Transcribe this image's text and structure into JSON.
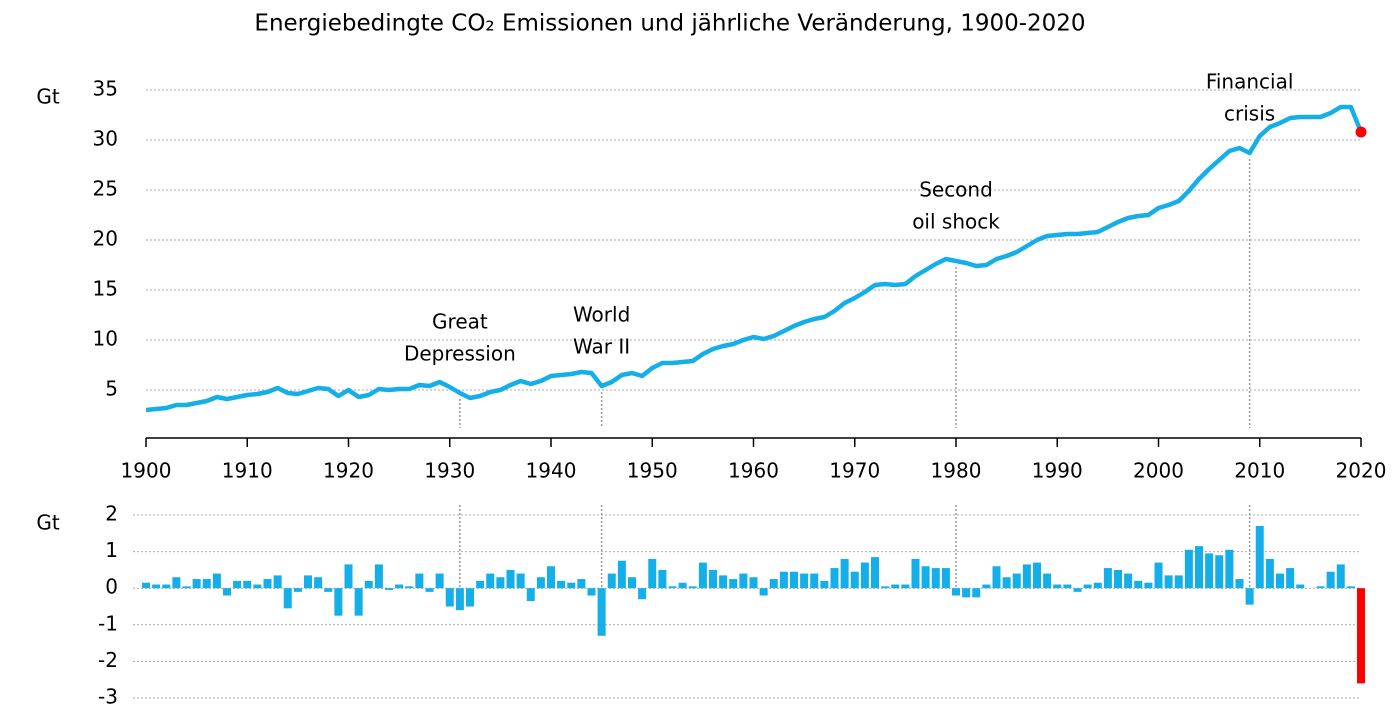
{
  "chart_data": [
    {
      "type": "line",
      "title": "Energiebedingte CO₂ Emissionen und jährliche Veränderung, 1900-2020",
      "ylabel": "Gt",
      "color": "#14aee8",
      "highlight_x": 2020,
      "highlight_color": "#ff0000",
      "grid": true,
      "x": [
        1900,
        1901,
        1902,
        1903,
        1904,
        1905,
        1906,
        1907,
        1908,
        1909,
        1910,
        1911,
        1912,
        1913,
        1914,
        1915,
        1916,
        1917,
        1918,
        1919,
        1920,
        1921,
        1922,
        1923,
        1924,
        1925,
        1926,
        1927,
        1928,
        1929,
        1930,
        1931,
        1932,
        1933,
        1934,
        1935,
        1936,
        1937,
        1938,
        1939,
        1940,
        1941,
        1942,
        1943,
        1944,
        1945,
        1946,
        1947,
        1948,
        1949,
        1950,
        1951,
        1952,
        1953,
        1954,
        1955,
        1956,
        1957,
        1958,
        1959,
        1960,
        1961,
        1962,
        1963,
        1964,
        1965,
        1966,
        1967,
        1968,
        1969,
        1970,
        1971,
        1972,
        1973,
        1974,
        1975,
        1976,
        1977,
        1978,
        1979,
        1980,
        1981,
        1982,
        1983,
        1984,
        1985,
        1986,
        1987,
        1988,
        1989,
        1990,
        1991,
        1992,
        1993,
        1994,
        1995,
        1996,
        1997,
        1998,
        1999,
        2000,
        2001,
        2002,
        2003,
        2004,
        2005,
        2006,
        2007,
        2008,
        2009,
        2010,
        2011,
        2012,
        2013,
        2014,
        2015,
        2016,
        2017,
        2018,
        2019,
        2020
      ],
      "values": [
        3.0,
        3.1,
        3.2,
        3.5,
        3.5,
        3.7,
        3.9,
        4.3,
        4.1,
        4.3,
        4.5,
        4.6,
        4.8,
        5.2,
        4.7,
        4.6,
        4.9,
        5.2,
        5.1,
        4.4,
        5.0,
        4.3,
        4.5,
        5.1,
        5.0,
        5.1,
        5.1,
        5.5,
        5.4,
        5.8,
        5.3,
        4.7,
        4.2,
        4.4,
        4.8,
        5.0,
        5.5,
        5.9,
        5.6,
        5.9,
        6.4,
        6.5,
        6.6,
        6.8,
        6.7,
        5.4,
        5.8,
        6.5,
        6.7,
        6.4,
        7.2,
        7.7,
        7.7,
        7.8,
        7.9,
        8.6,
        9.1,
        9.4,
        9.6,
        10.0,
        10.3,
        10.1,
        10.4,
        10.9,
        11.4,
        11.8,
        12.1,
        12.3,
        12.9,
        13.7,
        14.2,
        14.8,
        15.5,
        15.6,
        15.5,
        15.6,
        16.4,
        17.0,
        17.6,
        18.1,
        17.9,
        17.7,
        17.4,
        17.5,
        18.1,
        18.4,
        18.8,
        19.4,
        20.0,
        20.4,
        20.5,
        20.6,
        20.6,
        20.7,
        20.8,
        21.3,
        21.8,
        22.2,
        22.4,
        22.5,
        23.2,
        23.5,
        23.9,
        24.9,
        26.1,
        27.1,
        28.0,
        28.9,
        29.2,
        28.7,
        30.4,
        31.3,
        31.7,
        32.2,
        32.3,
        32.3,
        32.3,
        32.7,
        33.3,
        33.3,
        30.8
      ],
      "xlim": [
        1900,
        2020
      ],
      "xticks": [
        1900,
        1910,
        1920,
        1930,
        1940,
        1950,
        1960,
        1970,
        1980,
        1990,
        2000,
        2010,
        2020
      ],
      "ylim": [
        0,
        35
      ],
      "yticks": [
        5,
        10,
        15,
        20,
        25,
        30,
        35
      ],
      "annotations": [
        {
          "x": 1931,
          "text": [
            "Great",
            "Depression"
          ]
        },
        {
          "x": 1945,
          "text": [
            "World",
            "War II"
          ]
        },
        {
          "x": 1980,
          "text": [
            "Second",
            "oil shock"
          ]
        },
        {
          "x": 2009,
          "text": [
            "Financial",
            "crisis"
          ]
        }
      ]
    },
    {
      "type": "bar",
      "ylabel": "Gt",
      "color": "#14aee8",
      "highlight_x": 2020,
      "highlight_color": "#ff0000",
      "grid": true,
      "x": [
        1900,
        1901,
        1902,
        1903,
        1904,
        1905,
        1906,
        1907,
        1908,
        1909,
        1910,
        1911,
        1912,
        1913,
        1914,
        1915,
        1916,
        1917,
        1918,
        1919,
        1920,
        1921,
        1922,
        1923,
        1924,
        1925,
        1926,
        1927,
        1928,
        1929,
        1930,
        1931,
        1932,
        1933,
        1934,
        1935,
        1936,
        1937,
        1938,
        1939,
        1940,
        1941,
        1942,
        1943,
        1944,
        1945,
        1946,
        1947,
        1948,
        1949,
        1950,
        1951,
        1952,
        1953,
        1954,
        1955,
        1956,
        1957,
        1958,
        1959,
        1960,
        1961,
        1962,
        1963,
        1964,
        1965,
        1966,
        1967,
        1968,
        1969,
        1970,
        1971,
        1972,
        1973,
        1974,
        1975,
        1976,
        1977,
        1978,
        1979,
        1980,
        1981,
        1982,
        1983,
        1984,
        1985,
        1986,
        1987,
        1988,
        1989,
        1990,
        1991,
        1992,
        1993,
        1994,
        1995,
        1996,
        1997,
        1998,
        1999,
        2000,
        2001,
        2002,
        2003,
        2004,
        2005,
        2006,
        2007,
        2008,
        2009,
        2010,
        2011,
        2012,
        2013,
        2014,
        2015,
        2016,
        2017,
        2018,
        2019,
        2020
      ],
      "values": [
        0.15,
        0.1,
        0.1,
        0.3,
        0.05,
        0.25,
        0.25,
        0.4,
        -0.2,
        0.2,
        0.2,
        0.1,
        0.25,
        0.35,
        -0.55,
        -0.1,
        0.35,
        0.3,
        -0.1,
        -0.75,
        0.65,
        -0.75,
        0.2,
        0.65,
        -0.05,
        0.1,
        0.05,
        0.4,
        -0.1,
        0.4,
        -0.5,
        -0.6,
        -0.5,
        0.2,
        0.4,
        0.3,
        0.5,
        0.4,
        -0.35,
        0.3,
        0.6,
        0.2,
        0.15,
        0.25,
        -0.2,
        -1.3,
        0.4,
        0.75,
        0.3,
        -0.3,
        0.8,
        0.5,
        0.05,
        0.15,
        0.05,
        0.7,
        0.5,
        0.35,
        0.25,
        0.4,
        0.3,
        -0.2,
        0.25,
        0.45,
        0.45,
        0.4,
        0.4,
        0.2,
        0.55,
        0.8,
        0.45,
        0.7,
        0.85,
        0.05,
        0.1,
        0.1,
        0.8,
        0.6,
        0.55,
        0.55,
        -0.2,
        -0.25,
        -0.25,
        0.1,
        0.6,
        0.3,
        0.4,
        0.65,
        0.7,
        0.4,
        0.1,
        0.1,
        -0.1,
        0.1,
        0.15,
        0.55,
        0.5,
        0.4,
        0.2,
        0.15,
        0.7,
        0.35,
        0.35,
        1.05,
        1.15,
        0.95,
        0.9,
        1.05,
        0.25,
        -0.45,
        1.7,
        0.8,
        0.4,
        0.55,
        0.1,
        0.0,
        0.05,
        0.45,
        0.65,
        0.05,
        -2.6
      ],
      "xlim": [
        1900,
        2020
      ],
      "ylim": [
        -3,
        2
      ],
      "yticks": [
        -3,
        -2,
        -1,
        0,
        1,
        2
      ]
    }
  ]
}
